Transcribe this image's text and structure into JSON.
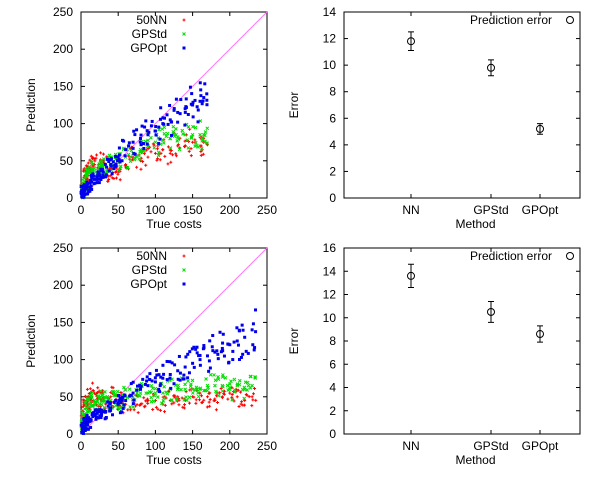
{
  "chart_data": [
    {
      "type": "scatter",
      "xlabel": "True costs",
      "ylabel": "Prediction",
      "xlim": [
        0,
        250
      ],
      "ylim": [
        0,
        250
      ],
      "xticks": [
        "0",
        "50",
        "100",
        "150",
        "200",
        "250"
      ],
      "yticks": [
        "0",
        "50",
        "100",
        "150",
        "200",
        "250"
      ],
      "legend_position": "top-left",
      "reference_line": {
        "from": [
          0,
          0
        ],
        "to": [
          250,
          250
        ],
        "color": "#ff77ff"
      },
      "series": [
        {
          "name": "50NN",
          "marker": "+",
          "color": "#ff0000",
          "x": [
            1,
            3,
            5,
            8,
            12,
            18,
            25,
            30,
            40,
            50,
            60,
            70,
            80,
            90,
            100,
            110,
            120,
            130,
            140,
            150,
            160,
            165
          ],
          "y": [
            5,
            20,
            30,
            35,
            40,
            45,
            40,
            50,
            30,
            35,
            45,
            55,
            50,
            55,
            60,
            65,
            60,
            70,
            70,
            75,
            70,
            75
          ]
        },
        {
          "name": "GPStd",
          "marker": "x",
          "color": "#00dd00",
          "x": [
            1,
            3,
            5,
            8,
            12,
            18,
            25,
            30,
            40,
            50,
            60,
            70,
            80,
            90,
            100,
            110,
            120,
            130,
            140,
            150,
            160,
            165
          ],
          "y": [
            3,
            10,
            20,
            30,
            35,
            40,
            40,
            45,
            45,
            50,
            55,
            60,
            65,
            70,
            75,
            78,
            80,
            82,
            85,
            85,
            85,
            85
          ]
        },
        {
          "name": "GPOpt",
          "marker": "square",
          "color": "#0000ee",
          "x": [
            1,
            3,
            5,
            8,
            12,
            18,
            25,
            30,
            40,
            50,
            60,
            70,
            80,
            90,
            100,
            110,
            120,
            130,
            140,
            150,
            160,
            165
          ],
          "y": [
            2,
            5,
            10,
            15,
            20,
            25,
            30,
            35,
            45,
            55,
            65,
            75,
            80,
            85,
            90,
            100,
            105,
            115,
            120,
            125,
            130,
            135
          ]
        }
      ]
    },
    {
      "type": "scatter",
      "xlabel": "Method",
      "ylabel": "Error",
      "categories": [
        "NN",
        "GPStd",
        "GPOpt"
      ],
      "ylim": [
        0,
        14
      ],
      "yticks": [
        "0",
        "2",
        "4",
        "6",
        "8",
        "10",
        "12",
        "14"
      ],
      "legend_position": "top-right",
      "series": [
        {
          "name": "Prediction error",
          "marker": "circle",
          "color": "#000000",
          "values": [
            11.8,
            9.8,
            5.2
          ],
          "errors": [
            0.7,
            0.6,
            0.4
          ]
        }
      ]
    },
    {
      "type": "scatter",
      "xlabel": "True costs",
      "ylabel": "Prediction",
      "xlim": [
        0,
        250
      ],
      "ylim": [
        0,
        250
      ],
      "xticks": [
        "0",
        "50",
        "100",
        "150",
        "200",
        "250"
      ],
      "yticks": [
        "0",
        "50",
        "100",
        "150",
        "200",
        "250"
      ],
      "legend_position": "top-left",
      "reference_line": {
        "from": [
          0,
          0
        ],
        "to": [
          250,
          250
        ],
        "color": "#ff77ff"
      },
      "series": [
        {
          "name": "50NN",
          "marker": "+",
          "color": "#ff0000",
          "x": [
            1,
            3,
            5,
            8,
            12,
            18,
            25,
            30,
            40,
            50,
            60,
            70,
            80,
            90,
            100,
            110,
            120,
            130,
            140,
            150,
            160,
            170,
            180,
            190,
            200,
            210,
            220,
            230
          ],
          "y": [
            10,
            30,
            40,
            45,
            50,
            55,
            50,
            45,
            50,
            45,
            40,
            45,
            40,
            45,
            45,
            40,
            45,
            50,
            45,
            50,
            55,
            50,
            45,
            50,
            55,
            50,
            45,
            50
          ]
        },
        {
          "name": "GPStd",
          "marker": "x",
          "color": "#00dd00",
          "x": [
            1,
            3,
            5,
            8,
            12,
            18,
            25,
            30,
            40,
            50,
            60,
            70,
            80,
            90,
            100,
            110,
            120,
            130,
            140,
            150,
            160,
            170,
            180,
            190,
            200,
            210,
            220,
            230
          ],
          "y": [
            5,
            15,
            25,
            35,
            40,
            45,
            40,
            45,
            45,
            45,
            50,
            50,
            55,
            55,
            55,
            55,
            60,
            60,
            60,
            60,
            60,
            65,
            65,
            65,
            60,
            65,
            60,
            65
          ]
        },
        {
          "name": "GPOpt",
          "marker": "square",
          "color": "#0000ee",
          "x": [
            1,
            3,
            5,
            8,
            12,
            18,
            25,
            30,
            40,
            50,
            60,
            70,
            80,
            90,
            100,
            110,
            120,
            130,
            140,
            150,
            160,
            170,
            180,
            190,
            200,
            210,
            220,
            230
          ],
          "y": [
            2,
            5,
            10,
            15,
            20,
            25,
            30,
            30,
            35,
            40,
            45,
            55,
            60,
            65,
            70,
            75,
            80,
            85,
            90,
            95,
            100,
            105,
            110,
            115,
            120,
            125,
            130,
            140
          ]
        }
      ]
    },
    {
      "type": "scatter",
      "xlabel": "Method",
      "ylabel": "Error",
      "categories": [
        "NN",
        "GPStd",
        "GPOpt"
      ],
      "ylim": [
        0,
        16
      ],
      "yticks": [
        "0",
        "2",
        "4",
        "6",
        "8",
        "10",
        "12",
        "14",
        "16"
      ],
      "legend_position": "top-right",
      "series": [
        {
          "name": "Prediction error",
          "marker": "circle",
          "color": "#000000",
          "values": [
            13.6,
            10.5,
            8.6
          ],
          "errors": [
            1.0,
            0.9,
            0.7
          ]
        }
      ]
    }
  ]
}
